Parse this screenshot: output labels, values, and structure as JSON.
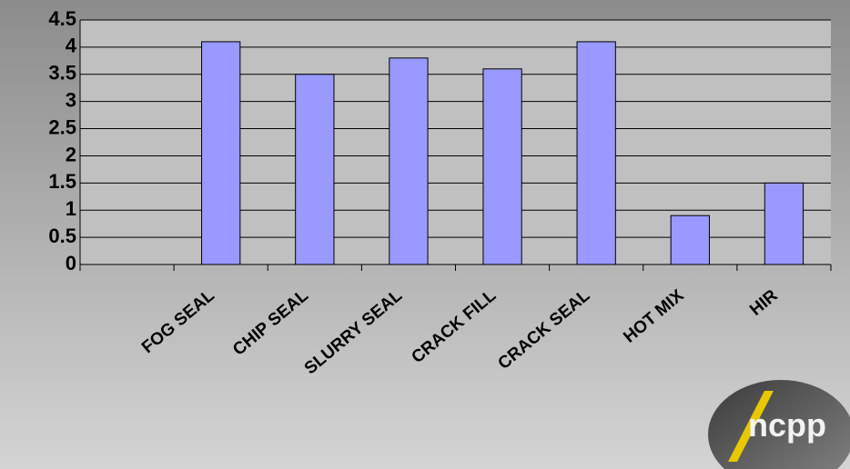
{
  "chart_data": {
    "type": "bar",
    "categories": [
      null,
      "FOG SEAL",
      "CHIP SEAL",
      "SLURRY SEAL",
      "CRACK FILL",
      "CRACK SEAL",
      "HOT MIX",
      "HIR"
    ],
    "values": [
      null,
      4.1,
      3.5,
      3.8,
      3.6,
      4.1,
      0.9,
      1.5
    ],
    "color": "#9999ff",
    "ylim": [
      0,
      4.5
    ],
    "yticks": [
      0,
      0.5,
      1,
      1.5,
      2,
      2.5,
      3,
      3.5,
      4,
      4.5
    ],
    "grid": true
  },
  "logo": "ncpp"
}
